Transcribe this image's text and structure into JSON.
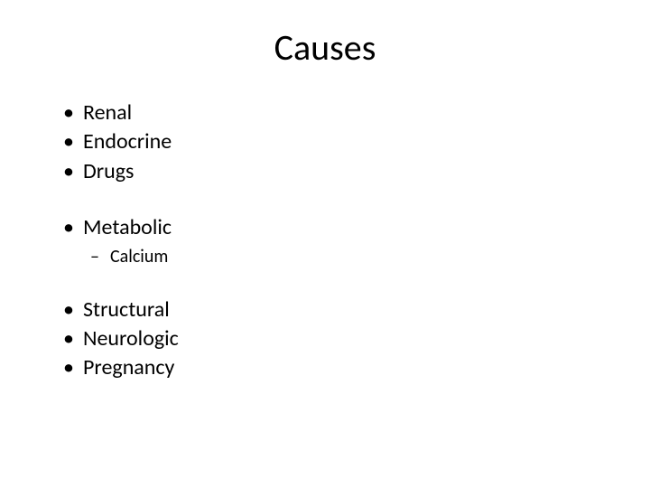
{
  "slide": {
    "title": "Causes",
    "groups": [
      {
        "items": [
          {
            "text": "Renal"
          },
          {
            "text": "Endocrine"
          },
          {
            "text": "Drugs"
          }
        ]
      },
      {
        "items": [
          {
            "text": "Metabolic",
            "sub": [
              {
                "text": "Calcium"
              }
            ]
          }
        ]
      },
      {
        "items": [
          {
            "text": "Structural"
          },
          {
            "text": "Neurologic"
          },
          {
            "text": "Pregnancy"
          }
        ]
      }
    ]
  },
  "style": {
    "background_color": "#ffffff",
    "text_color": "#000000",
    "title_fontsize": 40,
    "level1_fontsize": 24,
    "level2_fontsize": 20,
    "font_family": "Calibri",
    "slide_width": 720,
    "slide_height": 540
  }
}
